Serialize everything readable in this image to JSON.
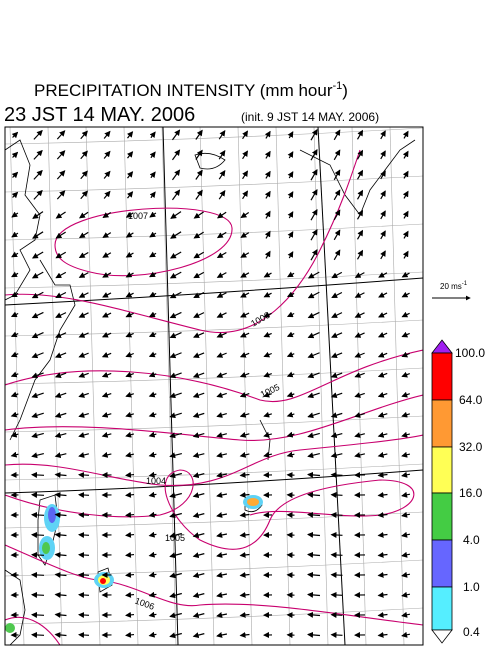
{
  "header": {
    "title": {
      "text": "PRECIPITATION INTENSITY (mm hour",
      "superscript": "-1",
      "closing": ")"
    },
    "time": "23 JST 14 MAY. 2006",
    "init": "(init. 9 JST 14 MAY. 2006)"
  },
  "isobar_labels": [
    "1007",
    "1006",
    "1005",
    "1004",
    "1005",
    "1006"
  ],
  "wind_scale": {
    "text": "20 ms",
    "superscript": "-1"
  },
  "colorbar": {
    "labels": [
      "100.0",
      "64.0",
      "32.0",
      "16.0",
      "4.0",
      "1.0",
      "0.4"
    ]
  }
}
